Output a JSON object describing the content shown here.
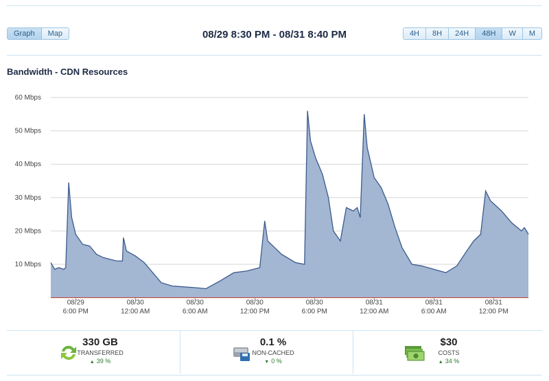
{
  "header": {
    "view_tabs": [
      "Graph",
      "Map"
    ],
    "active_view": "Graph",
    "date_range": "08/29 8:30 PM - 08/31 8:40 PM",
    "range_buttons": [
      "4H",
      "8H",
      "24H",
      "48H",
      "W",
      "M"
    ],
    "active_range": "48H"
  },
  "chart_data": {
    "type": "area",
    "title": "Bandwidth - CDN Resources",
    "x": [
      -2.5,
      -2.1,
      -1.7,
      -1.2,
      -1.0,
      -0.7,
      -0.4,
      0,
      0.7,
      1.4,
      2.1,
      2.8,
      4.1,
      4.7,
      4.8,
      5.1,
      6,
      6.9,
      7.6,
      8.6,
      9.7,
      12,
      13.1,
      14.5,
      15.9,
      17.2,
      18.5,
      19,
      19.3,
      20,
      20.7,
      22.1,
      23,
      23.3,
      23.6,
      24.1,
      24.8,
      25.4,
      25.9,
      26.6,
      27.2,
      27.9,
      28.3,
      28.6,
      29,
      29.3,
      30,
      30.7,
      31.4,
      32.1,
      32.8,
      33.8,
      34.8,
      36,
      37.2,
      38.3,
      39.3,
      40,
      40.7,
      41.2,
      41.7,
      42.8,
      43.8,
      44.8,
      45.1,
      45.5
    ],
    "values": [
      10.5,
      8.5,
      9,
      8.5,
      9,
      34.5,
      24,
      19,
      16,
      15.5,
      13,
      12,
      11,
      11,
      18,
      14,
      12.5,
      10.5,
      8,
      4.5,
      3.5,
      3,
      2.7,
      5,
      7.5,
      8,
      9,
      23,
      17,
      15,
      13,
      10.5,
      10,
      56,
      47,
      42,
      37,
      30,
      20,
      17,
      27,
      26,
      27,
      24,
      55,
      45,
      36,
      33,
      28,
      21,
      15,
      10,
      9.5,
      8.5,
      7.5,
      9.5,
      14,
      17,
      19,
      32,
      29,
      26,
      22.5,
      20,
      21,
      19
    ],
    "color": "#a3b6d2",
    "line_color": "#3b5a8c",
    "baseline_color": "#c0392b",
    "xlim": [
      -2.5,
      45.5
    ],
    "xticks": [
      {
        "value": 0,
        "label": [
          "08/29",
          "6:00 PM"
        ]
      },
      {
        "value": 6,
        "label": [
          "08/30",
          "12:00 AM"
        ]
      },
      {
        "value": 12,
        "label": [
          "08/30",
          "6:00 AM"
        ]
      },
      {
        "value": 18,
        "label": [
          "08/30",
          "12:00 PM"
        ]
      },
      {
        "value": 24,
        "label": [
          "08/30",
          "6:00 PM"
        ]
      },
      {
        "value": 30,
        "label": [
          "08/31",
          "12:00 AM"
        ]
      },
      {
        "value": 36,
        "label": [
          "08/31",
          "6:00 AM"
        ]
      },
      {
        "value": 42,
        "label": [
          "08/31",
          "12:00 PM"
        ]
      }
    ],
    "ylim": [
      0,
      60
    ],
    "yticks": [
      {
        "value": 10,
        "label": "10 Mbps"
      },
      {
        "value": 20,
        "label": "20 Mbps"
      },
      {
        "value": 30,
        "label": "30 Mbps"
      },
      {
        "value": 40,
        "label": "40 Mbps"
      },
      {
        "value": 50,
        "label": "50 Mbps"
      },
      {
        "value": 60,
        "label": "60 Mbps"
      }
    ],
    "grid": true
  },
  "stats": [
    {
      "value": "330 GB",
      "label": "TRANSFERRED",
      "change": "39 %",
      "direction": "up"
    },
    {
      "value": "0.1 %",
      "label": "NON-CACHED",
      "change": "0 %",
      "direction": "down"
    },
    {
      "value": "$30",
      "label": "COSTS",
      "change": "34 %",
      "direction": "up"
    }
  ]
}
